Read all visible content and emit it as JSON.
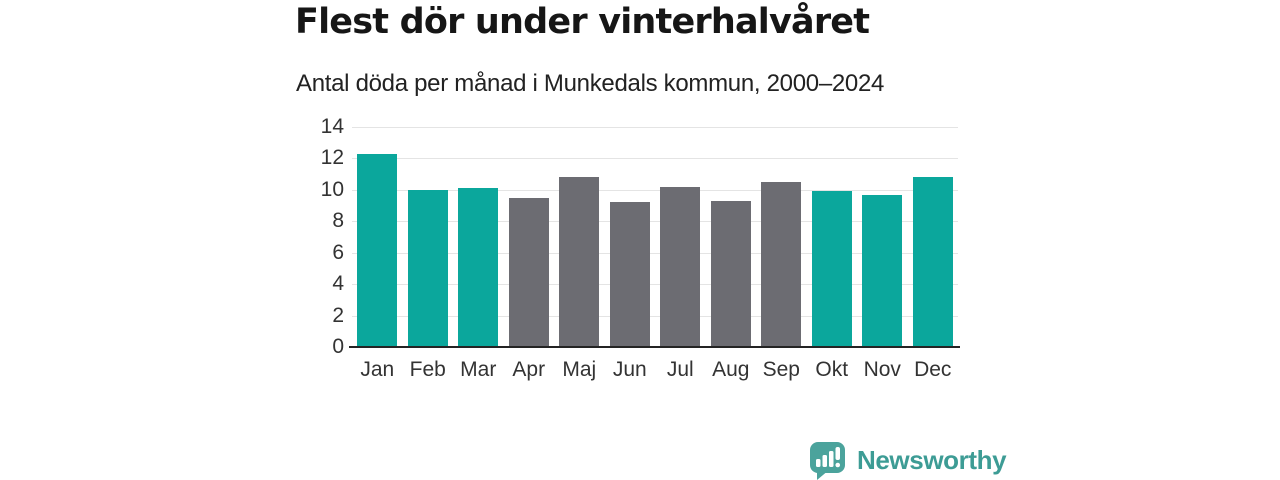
{
  "header": {
    "title": "Flest dör under vinterhalvåret",
    "subtitle": "Antal döda per månad i Munkedals kommun, 2000–2024"
  },
  "chart_data": {
    "type": "bar",
    "title": "Flest dör under vinterhalvåret",
    "subtitle": "Antal döda per månad i Munkedals kommun, 2000–2024",
    "categories": [
      "Jan",
      "Feb",
      "Mar",
      "Apr",
      "Maj",
      "Jun",
      "Jul",
      "Aug",
      "Sep",
      "Okt",
      "Nov",
      "Dec"
    ],
    "values": [
      12.3,
      10.0,
      10.1,
      9.5,
      10.8,
      9.2,
      10.2,
      9.3,
      10.5,
      9.9,
      9.7,
      10.8
    ],
    "bar_color_keys": [
      "teal",
      "teal",
      "teal",
      "gray",
      "gray",
      "gray",
      "gray",
      "gray",
      "gray",
      "teal",
      "teal",
      "teal"
    ],
    "colors": {
      "teal": "#0ba79c",
      "gray": "#6c6c72"
    },
    "xlabel": "",
    "ylabel": "",
    "ylim": [
      0,
      14
    ],
    "ytick_step": 2,
    "yticks": [
      0,
      2,
      4,
      6,
      8,
      10,
      12,
      14
    ],
    "grid": true,
    "legend": false,
    "gridline_color": "#e4e4e4",
    "axis_color": "#242424",
    "tick_label_color": "#333333"
  },
  "footer": {
    "brand": "Newsworthy",
    "brand_color": "#3d9c95",
    "logo_color": "#4ba39c",
    "logo_icon": "bar-chart-speech-bubble-icon"
  }
}
